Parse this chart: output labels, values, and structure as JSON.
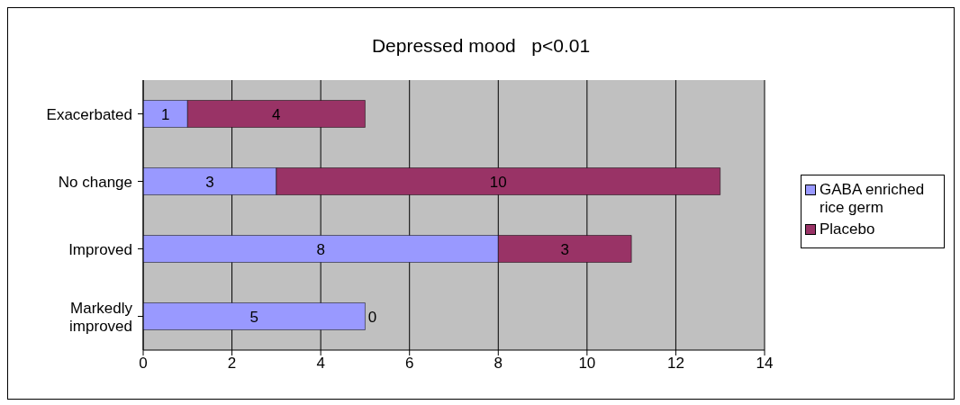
{
  "chart_data": {
    "type": "bar",
    "orientation": "horizontal",
    "stacked": true,
    "title": "Depressed mood   p<0.01",
    "categories": [
      "Exacerbated",
      "No change",
      "Improved",
      "Markedly improved"
    ],
    "series": [
      {
        "name": "GABA enriched rice germ",
        "color": "#9999ff",
        "values": [
          1,
          3,
          8,
          5
        ]
      },
      {
        "name": "Placebo",
        "color": "#993366",
        "values": [
          4,
          10,
          3,
          0
        ]
      }
    ],
    "xlim": [
      0,
      14
    ],
    "xticks": [
      0,
      2,
      4,
      6,
      8,
      10,
      12,
      14
    ],
    "grid": "x",
    "legend": "right",
    "data_labels": true
  }
}
